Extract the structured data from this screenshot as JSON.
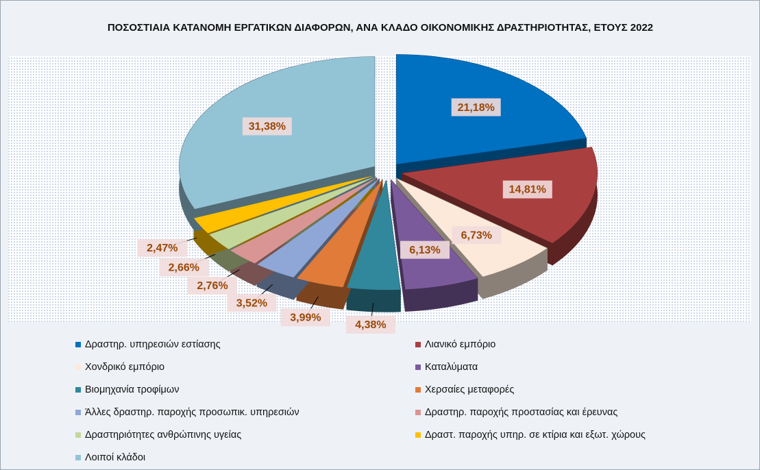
{
  "chart_data": {
    "type": "pie",
    "title": "ΠΟΣΟΣΤΙΑΙΑ ΚΑΤΑΝΟΜΗ ΕΡΓΑΤΙΚΩΝ ΔΙΑΦΟΡΩΝ, ΑΝΑ ΚΛΑΔΟ ΟΙΚΟΝΟΜΙΚΗΣ ΔΡΑΣΤΗΡΙΟΤΗΤΑΣ, ΕΤΟΥΣ 2022",
    "categories": [
      "Δραστηρ. υπηρεσιών εστίασης",
      "Λιανικό εμπόριο",
      "Χονδρικό εμπόριο",
      "Καταλύματα",
      "Βιομηχανία τροφίμων",
      "Χερσαίες μεταφορές",
      "Άλλες δραστηρ. παροχής προσωπικ. υπηρεσιών",
      "Δραστηρ. παροχής προστασίας και έρευνας",
      "Δραστηριότητες ανθρώπινης υγείας",
      "Δραστ. παροχής υπηρ. σε κτίρια και εξωτ. χώρους",
      "Λοιποί κλάδοι"
    ],
    "values": [
      21.18,
      14.81,
      6.73,
      6.13,
      4.38,
      3.99,
      3.52,
      2.76,
      2.66,
      2.47,
      31.38
    ],
    "value_labels": [
      "21,18%",
      "14,81%",
      "6,73%",
      "6,13%",
      "4,38%",
      "3,99%",
      "3,52%",
      "2,76%",
      "2,66%",
      "2,47%",
      "31,38%"
    ],
    "colors": [
      "#0070c0",
      "#a9403f",
      "#fde9d9",
      "#7b5a9c",
      "#31879c",
      "#e07b39",
      "#8ea7d6",
      "#d99594",
      "#c4d79b",
      "#ffc000",
      "#93c4d6"
    ],
    "legend": "bottom"
  }
}
